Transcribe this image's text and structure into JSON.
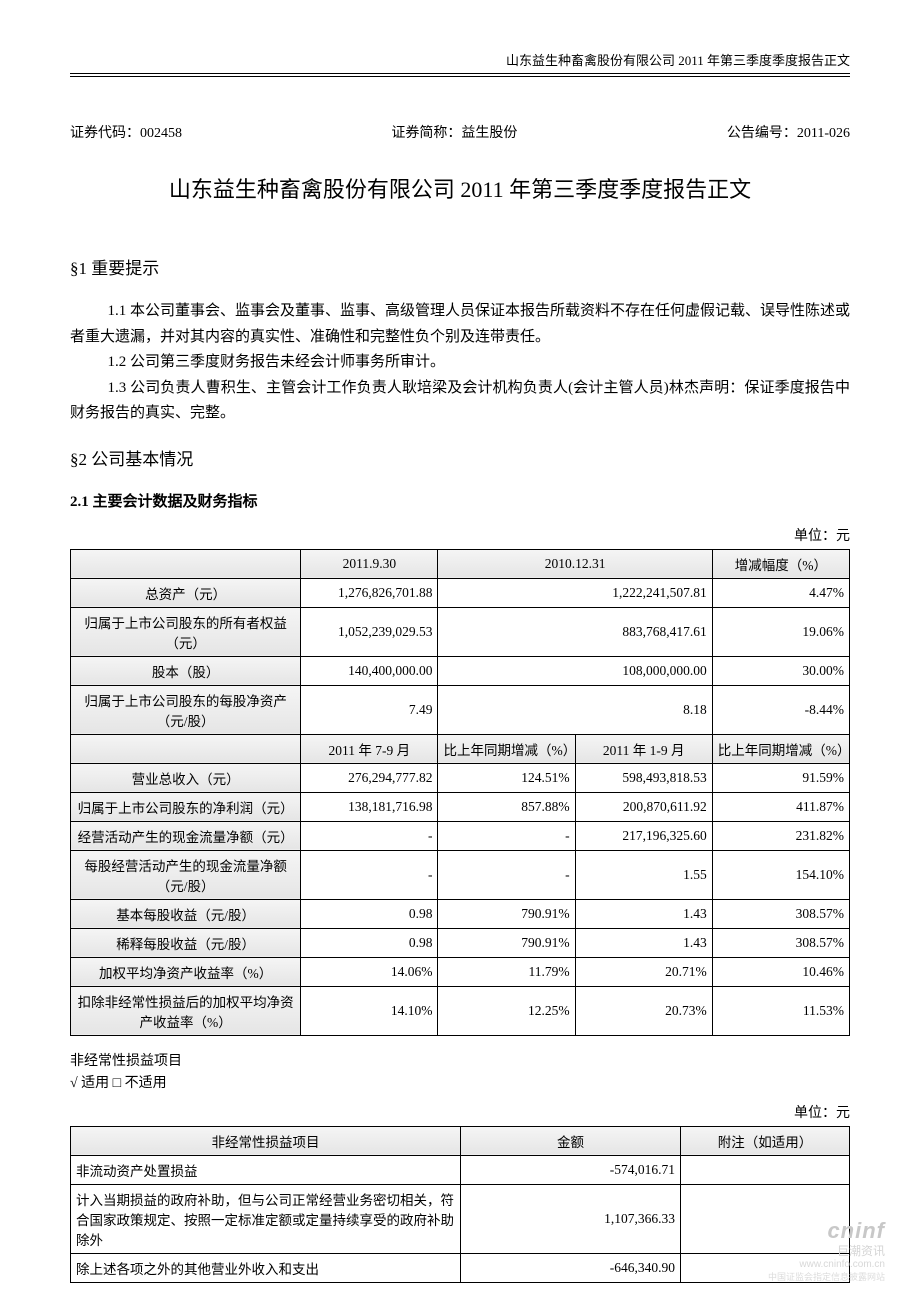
{
  "header": {
    "running_title": "山东益生种畜禽股份有限公司 2011 年第三季度季度报告正文"
  },
  "meta": {
    "code_label": "证券代码：",
    "code": "002458",
    "short_label": "证券简称：",
    "short": "益生股份",
    "ann_label": "公告编号：",
    "ann": "2011-026"
  },
  "title": "山东益生种畜禽股份有限公司 2011 年第三季度季度报告正文",
  "s1": {
    "heading": "§1  重要提示",
    "p1": "1.1 本公司董事会、监事会及董事、监事、高级管理人员保证本报告所载资料不存在任何虚假记载、误导性陈述或者重大遗漏，并对其内容的真实性、准确性和完整性负个别及连带责任。",
    "p2": "1.2 公司第三季度财务报告未经会计师事务所审计。",
    "p3": "1.3 公司负责人曹积生、主管会计工作负责人耿培梁及会计机构负责人(会计主管人员)林杰声明：保证季度报告中财务报告的真实、完整。"
  },
  "s2": {
    "heading": "§2  公司基本情况",
    "sub": "2.1 主要会计数据及财务指标",
    "unit": "单位：元"
  },
  "table1": {
    "headers_a": [
      "",
      "2011.9.30",
      "2010.12.31",
      "增减幅度（%）"
    ],
    "rows_a": [
      {
        "label": "总资产（元）",
        "c1": "1,276,826,701.88",
        "c2": "1,222,241,507.81",
        "c3": "4.47%"
      },
      {
        "label": "归属于上市公司股东的所有者权益（元）",
        "c1": "1,052,239,029.53",
        "c2": "883,768,417.61",
        "c3": "19.06%"
      },
      {
        "label": "股本（股）",
        "c1": "140,400,000.00",
        "c2": "108,000,000.00",
        "c3": "30.00%"
      },
      {
        "label": "归属于上市公司股东的每股净资产（元/股）",
        "c1": "7.49",
        "c2": "8.18",
        "c3": "-8.44%"
      }
    ],
    "headers_b": [
      "",
      "2011 年 7-9 月",
      "比上年同期增减（%）",
      "2011 年 1-9 月",
      "比上年同期增减（%）"
    ],
    "rows_b": [
      {
        "label": "营业总收入（元）",
        "c1": "276,294,777.82",
        "c2": "124.51%",
        "c3": "598,493,818.53",
        "c4": "91.59%"
      },
      {
        "label": "归属于上市公司股东的净利润（元）",
        "c1": "138,181,716.98",
        "c2": "857.88%",
        "c3": "200,870,611.92",
        "c4": "411.87%"
      },
      {
        "label": "经营活动产生的现金流量净额（元）",
        "c1": "-",
        "c2": "-",
        "c3": "217,196,325.60",
        "c4": "231.82%"
      },
      {
        "label": "每股经营活动产生的现金流量净额（元/股）",
        "c1": "-",
        "c2": "-",
        "c3": "1.55",
        "c4": "154.10%"
      },
      {
        "label": "基本每股收益（元/股）",
        "c1": "0.98",
        "c2": "790.91%",
        "c3": "1.43",
        "c4": "308.57%"
      },
      {
        "label": "稀释每股收益（元/股）",
        "c1": "0.98",
        "c2": "790.91%",
        "c3": "1.43",
        "c4": "308.57%"
      },
      {
        "label": "加权平均净资产收益率（%）",
        "c1": "14.06%",
        "c2": "11.79%",
        "c3": "20.71%",
        "c4": "10.46%"
      },
      {
        "label": "扣除非经常性损益后的加权平均净资产收益率（%）",
        "c1": "14.10%",
        "c2": "12.25%",
        "c3": "20.73%",
        "c4": "11.53%"
      }
    ]
  },
  "nonrecurring": {
    "note1": "非经常性损益项目",
    "note2": "√ 适用 □ 不适用",
    "unit": "单位：元",
    "headers": [
      "非经常性损益项目",
      "金额",
      "附注（如适用）"
    ],
    "rows": [
      {
        "label": "非流动资产处置损益",
        "amount": "-574,016.71",
        "note": ""
      },
      {
        "label": "计入当期损益的政府补助，但与公司正常经营业务密切相关，符合国家政策规定、按照一定标准定额或定量持续享受的政府补助除外",
        "amount": "1,107,366.33",
        "note": ""
      },
      {
        "label": "除上述各项之外的其他营业外收入和支出",
        "amount": "-646,340.90",
        "note": ""
      }
    ]
  },
  "watermark": {
    "brand": "cninf",
    "sub": "巨潮资讯",
    "url": "www.cninfo.com.cn",
    "line": "中国证监会指定信息披露网站"
  },
  "style": {
    "col_widths_t1": {
      "label": 230,
      "col": 183
    },
    "col_widths_t1b": {
      "label": 230,
      "col": 137
    },
    "col_widths_t2": {
      "label": 390,
      "amount": 220,
      "note": 170
    },
    "header_bg": "#ececec",
    "border_color": "#000000",
    "text_color": "#000000",
    "page_bg": "#ffffff",
    "font_size_body": 14,
    "font_size_title": 22,
    "font_size_table": 13.5
  }
}
